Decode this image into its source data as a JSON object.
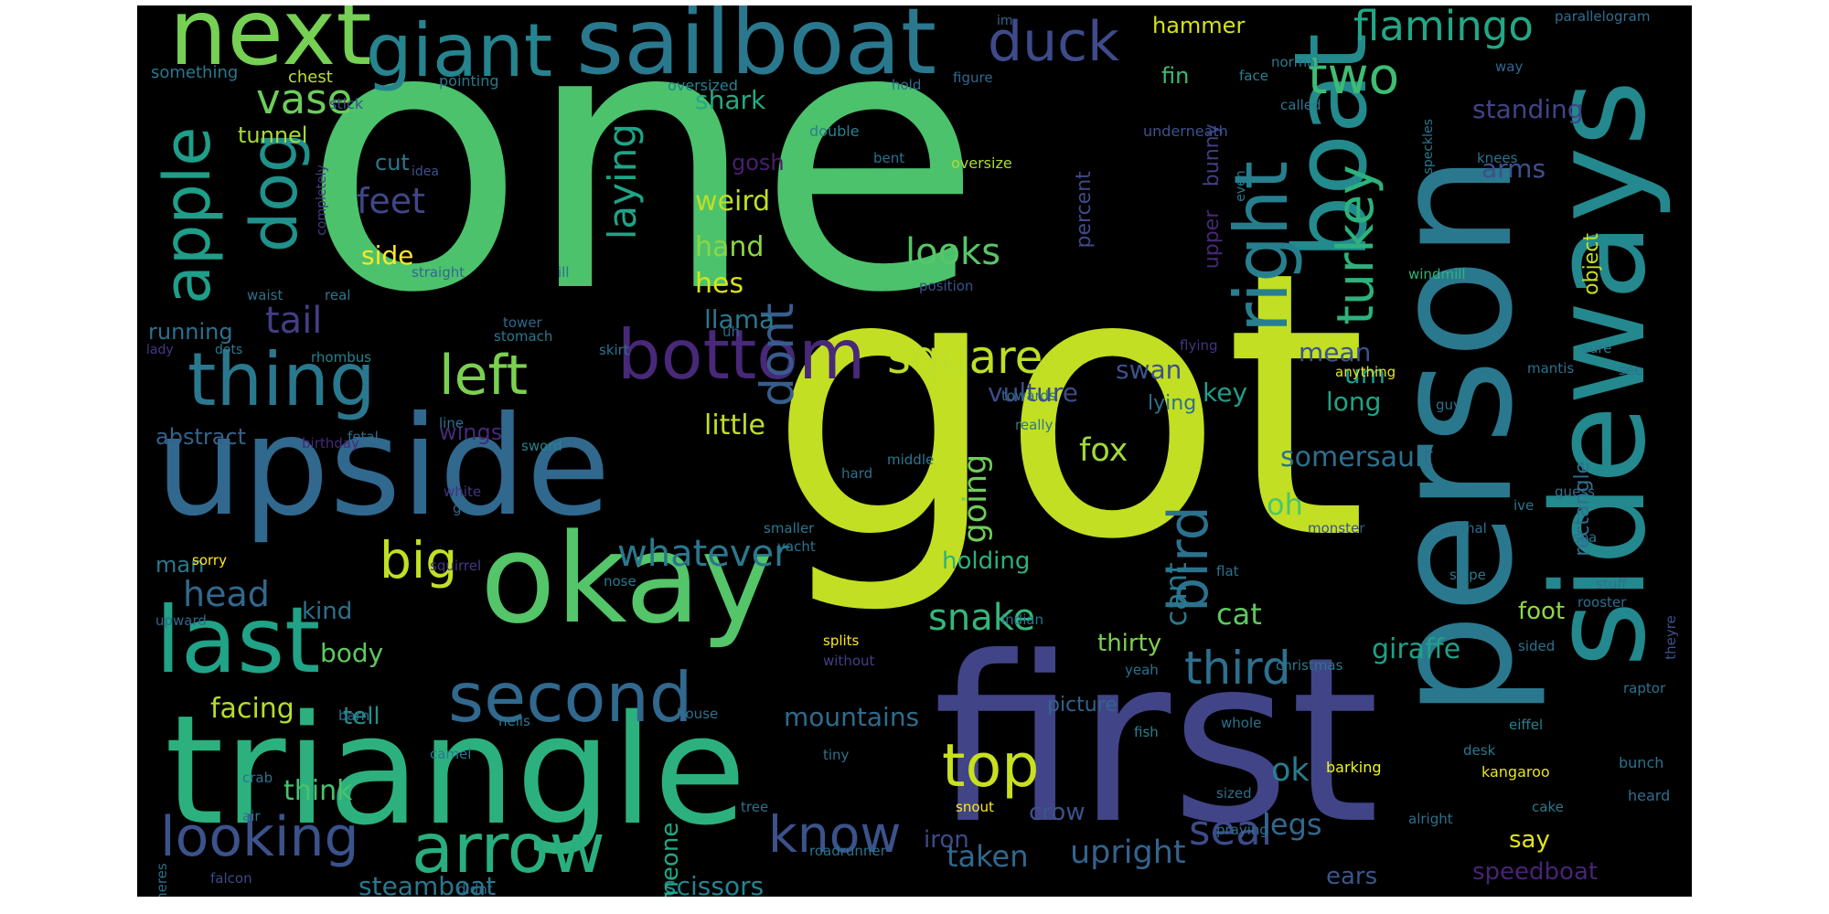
{
  "background_color": "#000000",
  "words": [
    {
      "text": "one",
      "color": "#4cc26c"
    },
    {
      "text": "got",
      "color": "#c2df23"
    },
    {
      "text": "first",
      "color": "#414487"
    },
    {
      "text": "person",
      "color": "#2a788e"
    },
    {
      "text": "triangle",
      "color": "#2cb17e"
    },
    {
      "text": "upside",
      "color": "#31688e"
    },
    {
      "text": "sideways",
      "color": "#23898e"
    },
    {
      "text": "okay",
      "color": "#54c568"
    },
    {
      "text": "boat",
      "color": "#238a8d"
    },
    {
      "text": "sailboat",
      "color": "#2a788e"
    },
    {
      "text": "next",
      "color": "#75d054"
    },
    {
      "text": "giant",
      "color": "#25848e"
    },
    {
      "text": "last",
      "color": "#20a386"
    },
    {
      "text": "bottom",
      "color": "#482878"
    },
    {
      "text": "thing",
      "color": "#2a788e"
    },
    {
      "text": "second",
      "color": "#31688e"
    },
    {
      "text": "arrow",
      "color": "#29af7f"
    },
    {
      "text": "looking",
      "color": "#3b528b"
    },
    {
      "text": "right",
      "color": "#277f8e"
    },
    {
      "text": "left",
      "color": "#7ad151"
    },
    {
      "text": "top",
      "color": "#c8e020"
    },
    {
      "text": "apple",
      "color": "#1f9e89"
    },
    {
      "text": "dog",
      "color": "#21918c"
    },
    {
      "text": "duck",
      "color": "#3e4a89"
    },
    {
      "text": "flamingo",
      "color": "#22a785"
    },
    {
      "text": "two",
      "color": "#3fbc73"
    },
    {
      "text": "turkey",
      "color": "#2db27d"
    },
    {
      "text": "big",
      "color": "#c2df23"
    },
    {
      "text": "square",
      "color": "#bddf26"
    },
    {
      "text": "third",
      "color": "#2e6f8e"
    },
    {
      "text": "know",
      "color": "#3b528b"
    },
    {
      "text": "vase",
      "color": "#6ccd5a"
    },
    {
      "text": "bird",
      "color": "#2c718e"
    },
    {
      "text": "whatever",
      "color": "#2a788e"
    },
    {
      "text": "dont",
      "color": "#365d8d"
    },
    {
      "text": "laying",
      "color": "#20a386"
    },
    {
      "text": "snake",
      "color": "#35b779"
    },
    {
      "text": "looks",
      "color": "#56c667"
    },
    {
      "text": "seal",
      "color": "#3e4a89"
    },
    {
      "text": "tail",
      "color": "#433e85"
    },
    {
      "text": "head",
      "color": "#31688e"
    },
    {
      "text": "feet",
      "color": "#404688"
    },
    {
      "text": "upright",
      "color": "#33638d"
    },
    {
      "text": "going",
      "color": "#6ece58"
    },
    {
      "text": "fox",
      "color": "#a0da39"
    },
    {
      "text": "cat",
      "color": "#5ec962"
    },
    {
      "text": "giraffe",
      "color": "#1fa187"
    },
    {
      "text": "oh",
      "color": "#50c46a"
    },
    {
      "text": "ok",
      "color": "#287d8e"
    },
    {
      "text": "cant",
      "color": "#2a788e"
    },
    {
      "text": "somersault",
      "color": "#2d708e"
    },
    {
      "text": "legs",
      "color": "#31688e"
    },
    {
      "text": "mountains",
      "color": "#2f6c8e"
    },
    {
      "text": "weird",
      "color": "#bddf26"
    },
    {
      "text": "hand",
      "color": "#8bd646"
    },
    {
      "text": "hes",
      "color": "#d8e219"
    },
    {
      "text": "side",
      "color": "#fde725"
    },
    {
      "text": "facing",
      "color": "#b5de2b"
    },
    {
      "text": "body",
      "color": "#5ec962"
    },
    {
      "text": "taken",
      "color": "#31688e"
    },
    {
      "text": "steamboat",
      "color": "#2a788e"
    },
    {
      "text": "scissors",
      "color": "#25848e"
    },
    {
      "text": "think",
      "color": "#4ac16d"
    },
    {
      "text": "little",
      "color": "#c0df25"
    },
    {
      "text": "llama",
      "color": "#2a788e"
    },
    {
      "text": "shark",
      "color": "#25ab82"
    },
    {
      "text": "mean",
      "color": "#3b528b"
    },
    {
      "text": "swan",
      "color": "#3b528b"
    },
    {
      "text": "vulture",
      "color": "#3e4a89"
    },
    {
      "text": "key",
      "color": "#1f9e89"
    },
    {
      "text": "long",
      "color": "#20a386"
    },
    {
      "text": "standing",
      "color": "#414487"
    },
    {
      "text": "arms",
      "color": "#3b528b"
    },
    {
      "text": "um",
      "color": "#1e9b8a"
    },
    {
      "text": "speedboat",
      "color": "#482475"
    },
    {
      "text": "ears",
      "color": "#39568c"
    },
    {
      "text": "say",
      "color": "#e2e418"
    },
    {
      "text": "foot",
      "color": "#90d743"
    },
    {
      "text": "kind",
      "color": "#2c718e"
    },
    {
      "text": "holding",
      "color": "#2cb17e"
    },
    {
      "text": "thirty",
      "color": "#7ad151"
    },
    {
      "text": "iron",
      "color": "#3e4a89"
    },
    {
      "text": "someone",
      "color": "#22a884"
    },
    {
      "text": "crow",
      "color": "#3b528b"
    },
    {
      "text": "tell",
      "color": "#21918c"
    },
    {
      "text": "man",
      "color": "#2a788e"
    },
    {
      "text": "abstract",
      "color": "#33638d"
    },
    {
      "text": "running",
      "color": "#2c718e"
    },
    {
      "text": "wings",
      "color": "#482878"
    },
    {
      "text": "tunnel",
      "color": "#a5db36"
    },
    {
      "text": "cut",
      "color": "#2a788e"
    },
    {
      "text": "gosh",
      "color": "#481f70"
    },
    {
      "text": "hammer",
      "color": "#d5e21a"
    },
    {
      "text": "fin",
      "color": "#3fbc73"
    },
    {
      "text": "percent",
      "color": "#3e4a89"
    },
    {
      "text": "upper",
      "color": "#482878"
    },
    {
      "text": "bunny",
      "color": "#433e85"
    },
    {
      "text": "lying",
      "color": "#2c718e"
    },
    {
      "text": "picture",
      "color": "#33638d"
    },
    {
      "text": "object",
      "color": "#c2df23"
    },
    {
      "text": "rectangle",
      "color": "#2e6f8e"
    },
    {
      "text": "chest",
      "color": "#bddf26"
    },
    {
      "text": "something",
      "color": "#2a788e"
    },
    {
      "text": "stick",
      "color": "#3b528b"
    },
    {
      "text": "pointing",
      "color": "#2a788e"
    },
    {
      "text": "oversized",
      "color": "#26828e"
    },
    {
      "text": "hold",
      "color": "#2e6f8e"
    },
    {
      "text": "figure",
      "color": "#31688e"
    },
    {
      "text": "double",
      "color": "#26828e"
    },
    {
      "text": "bent",
      "color": "#2c718e"
    },
    {
      "text": "oversize",
      "color": "#addc30"
    },
    {
      "text": "im",
      "color": "#31688e"
    },
    {
      "text": "normal",
      "color": "#2a788e"
    },
    {
      "text": "face",
      "color": "#26828e"
    },
    {
      "text": "called",
      "color": "#2a788e"
    },
    {
      "text": "underneath",
      "color": "#3b528b"
    },
    {
      "text": "even",
      "color": "#2a788e"
    },
    {
      "text": "parallelogram",
      "color": "#2e6f8e"
    },
    {
      "text": "way",
      "color": "#31688e"
    },
    {
      "text": "knees",
      "color": "#2c718e"
    },
    {
      "text": "speckles",
      "color": "#2a788e"
    },
    {
      "text": "windmill",
      "color": "#2fb47c"
    },
    {
      "text": "idea",
      "color": "#3b528b"
    },
    {
      "text": "completely",
      "color": "#433e85"
    },
    {
      "text": "straight",
      "color": "#31688e"
    },
    {
      "text": "ill",
      "color": "#2c718e"
    },
    {
      "text": "position",
      "color": "#3b528b"
    },
    {
      "text": "waist",
      "color": "#2e6f8e"
    },
    {
      "text": "real",
      "color": "#2a788e"
    },
    {
      "text": "tower",
      "color": "#31688e"
    },
    {
      "text": "stomach",
      "color": "#2a788e"
    },
    {
      "text": "uh",
      "color": "#31688e"
    },
    {
      "text": "lady",
      "color": "#443a83"
    },
    {
      "text": "dots",
      "color": "#2a788e"
    },
    {
      "text": "rhombus",
      "color": "#26828e"
    },
    {
      "text": "skirt",
      "color": "#2c718e"
    },
    {
      "text": "flying",
      "color": "#46327e"
    },
    {
      "text": "anything",
      "color": "#e5e419"
    },
    {
      "text": "mantis",
      "color": "#2c718e"
    },
    {
      "text": "sure",
      "color": "#2a788e"
    },
    {
      "text": "see",
      "color": "#2c718e"
    },
    {
      "text": "guy",
      "color": "#2c718e"
    },
    {
      "text": "towards",
      "color": "#2c718e"
    },
    {
      "text": "really",
      "color": "#2a788e"
    },
    {
      "text": "line",
      "color": "#2c718e"
    },
    {
      "text": "fetal",
      "color": "#2e6f8e"
    },
    {
      "text": "birthday",
      "color": "#482878"
    },
    {
      "text": "sword",
      "color": "#26828e"
    },
    {
      "text": "middle",
      "color": "#2a788e"
    },
    {
      "text": "hard",
      "color": "#2c718e"
    },
    {
      "text": "white",
      "color": "#46327e"
    },
    {
      "text": "go",
      "color": "#31688e"
    },
    {
      "text": "guess",
      "color": "#2e6f8e"
    },
    {
      "text": "ive",
      "color": "#2a788e"
    },
    {
      "text": "monster",
      "color": "#3b528b"
    },
    {
      "text": "animal",
      "color": "#2e6f8e"
    },
    {
      "text": "sea",
      "color": "#2c718e"
    },
    {
      "text": "smaller",
      "color": "#2a788e"
    },
    {
      "text": "yacht",
      "color": "#2c718e"
    },
    {
      "text": "sorry",
      "color": "#fde725"
    },
    {
      "text": "squirrel",
      "color": "#443a83"
    },
    {
      "text": "nose",
      "color": "#2a788e"
    },
    {
      "text": "flat",
      "color": "#2c718e"
    },
    {
      "text": "slope",
      "color": "#2a788e"
    },
    {
      "text": "stuff",
      "color": "#2c718e"
    },
    {
      "text": "rooster",
      "color": "#2e6f8e"
    },
    {
      "text": "upward",
      "color": "#31688e"
    },
    {
      "text": "indian",
      "color": "#2a788e"
    },
    {
      "text": "splits",
      "color": "#fde725"
    },
    {
      "text": "without",
      "color": "#433e85"
    },
    {
      "text": "yeah",
      "color": "#2c718e"
    },
    {
      "text": "christmas",
      "color": "#2a788e"
    },
    {
      "text": "sided",
      "color": "#2c718e"
    },
    {
      "text": "theyre",
      "color": "#3b528b"
    },
    {
      "text": "raptor",
      "color": "#2c718e"
    },
    {
      "text": "barn",
      "color": "#2c718e"
    },
    {
      "text": "hells",
      "color": "#2a788e"
    },
    {
      "text": "house",
      "color": "#2c718e"
    },
    {
      "text": "eiffel",
      "color": "#26828e"
    },
    {
      "text": "camel",
      "color": "#2a788e"
    },
    {
      "text": "desk",
      "color": "#2a788e"
    },
    {
      "text": "whole",
      "color": "#2c718e"
    },
    {
      "text": "fish",
      "color": "#26828e"
    },
    {
      "text": "tiny",
      "color": "#2c718e"
    },
    {
      "text": "crab",
      "color": "#2c718e"
    },
    {
      "text": "barking",
      "color": "#ecf819"
    },
    {
      "text": "kangaroo",
      "color": "#e8e419"
    },
    {
      "text": "bunch",
      "color": "#2c718e"
    },
    {
      "text": "heard",
      "color": "#2e6f8e"
    },
    {
      "text": "tree",
      "color": "#2c718e"
    },
    {
      "text": "snout",
      "color": "#fde725"
    },
    {
      "text": "sized",
      "color": "#2e6f8e"
    },
    {
      "text": "cake",
      "color": "#2a788e"
    },
    {
      "text": "air",
      "color": "#2a788e"
    },
    {
      "text": "alright",
      "color": "#2c718e"
    },
    {
      "text": "praying",
      "color": "#2c718e"
    },
    {
      "text": "falcon",
      "color": "#3e4a89"
    },
    {
      "text": "didnt",
      "color": "#2e6f8e"
    },
    {
      "text": "theres",
      "color": "#2e6f8e"
    },
    {
      "text": "roadrunner",
      "color": "#2c718e"
    }
  ]
}
